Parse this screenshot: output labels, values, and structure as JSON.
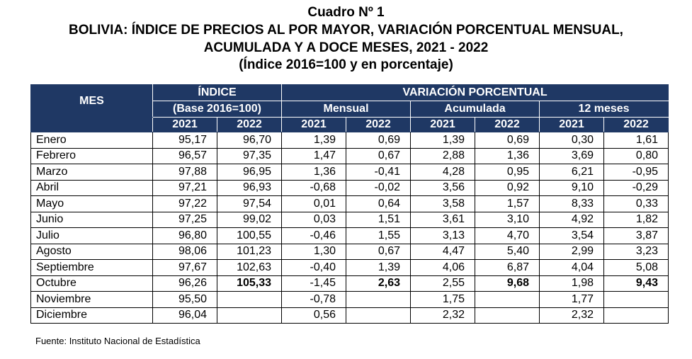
{
  "header": {
    "line1": "Cuadro Nº 1",
    "line2": "BOLIVIA: ÍNDICE DE PRECIOS AL POR MAYOR, VARIACIÓN PORCENTUAL MENSUAL,",
    "line3": "ACUMULADA Y A DOCE MESES, 2021 - 2022",
    "line4": "(Índice 2016=100 y en porcentaje)"
  },
  "table": {
    "col_mes": "MES",
    "col_indice": "ÍNDICE",
    "col_indice_base": "(Base 2016=100)",
    "col_variacion": "VARIACIÓN PORCENTUAL",
    "col_mensual": "Mensual",
    "col_acumulada": "Acumulada",
    "col_12meses": "12 meses",
    "years": [
      "2021",
      "2022",
      "2021",
      "2022",
      "2021",
      "2022",
      "2021",
      "2022"
    ],
    "rows": [
      {
        "mes": "Enero",
        "v": [
          "95,17",
          "96,70",
          "1,39",
          "0,69",
          "1,39",
          "0,69",
          "0,30",
          "1,61"
        ]
      },
      {
        "mes": "Febrero",
        "v": [
          "96,57",
          "97,35",
          "1,47",
          "0,67",
          "2,88",
          "1,36",
          "3,69",
          "0,80"
        ]
      },
      {
        "mes": "Marzo",
        "v": [
          "97,88",
          "96,95",
          "1,36",
          "-0,41",
          "4,28",
          "0,95",
          "6,21",
          "-0,95"
        ]
      },
      {
        "mes": "Abril",
        "v": [
          "97,21",
          "96,93",
          "-0,68",
          "-0,02",
          "3,56",
          "0,92",
          "9,10",
          "-0,29"
        ]
      },
      {
        "mes": "Mayo",
        "v": [
          "97,22",
          "97,54",
          "0,01",
          "0,64",
          "3,58",
          "1,57",
          "8,33",
          "0,33"
        ]
      },
      {
        "mes": "Junio",
        "v": [
          "97,25",
          "99,02",
          "0,03",
          "1,51",
          "3,61",
          "3,10",
          "4,92",
          "1,82"
        ]
      },
      {
        "mes": "Julio",
        "v": [
          "96,80",
          "100,55",
          "-0,46",
          "1,55",
          "3,13",
          "4,70",
          "3,54",
          "3,87"
        ]
      },
      {
        "mes": "Agosto",
        "v": [
          "98,06",
          "101,23",
          "1,30",
          "0,67",
          "4,47",
          "5,40",
          "2,99",
          "3,23"
        ]
      },
      {
        "mes": "Septiembre",
        "v": [
          "97,67",
          "102,63",
          "-0,40",
          "1,39",
          "4,06",
          "6,87",
          "4,04",
          "5,08"
        ]
      },
      {
        "mes": "Octubre",
        "v": [
          "96,26",
          "105,33",
          "-1,45",
          "2,63",
          "2,55",
          "9,68",
          "1,98",
          "9,43"
        ],
        "bold_2022": true
      },
      {
        "mes": "Noviembre",
        "v": [
          "95,50",
          "",
          "-0,78",
          "",
          "1,75",
          "",
          "1,77",
          ""
        ]
      },
      {
        "mes": "Diciembre",
        "v": [
          "96,04",
          "",
          "0,56",
          "",
          "2,32",
          "",
          "2,32",
          ""
        ]
      }
    ]
  },
  "footer": {
    "source": "Fuente: Instituto Nacional de Estadística"
  },
  "colors": {
    "header_bg": "#1f3864",
    "header_text": "#ffffff"
  }
}
